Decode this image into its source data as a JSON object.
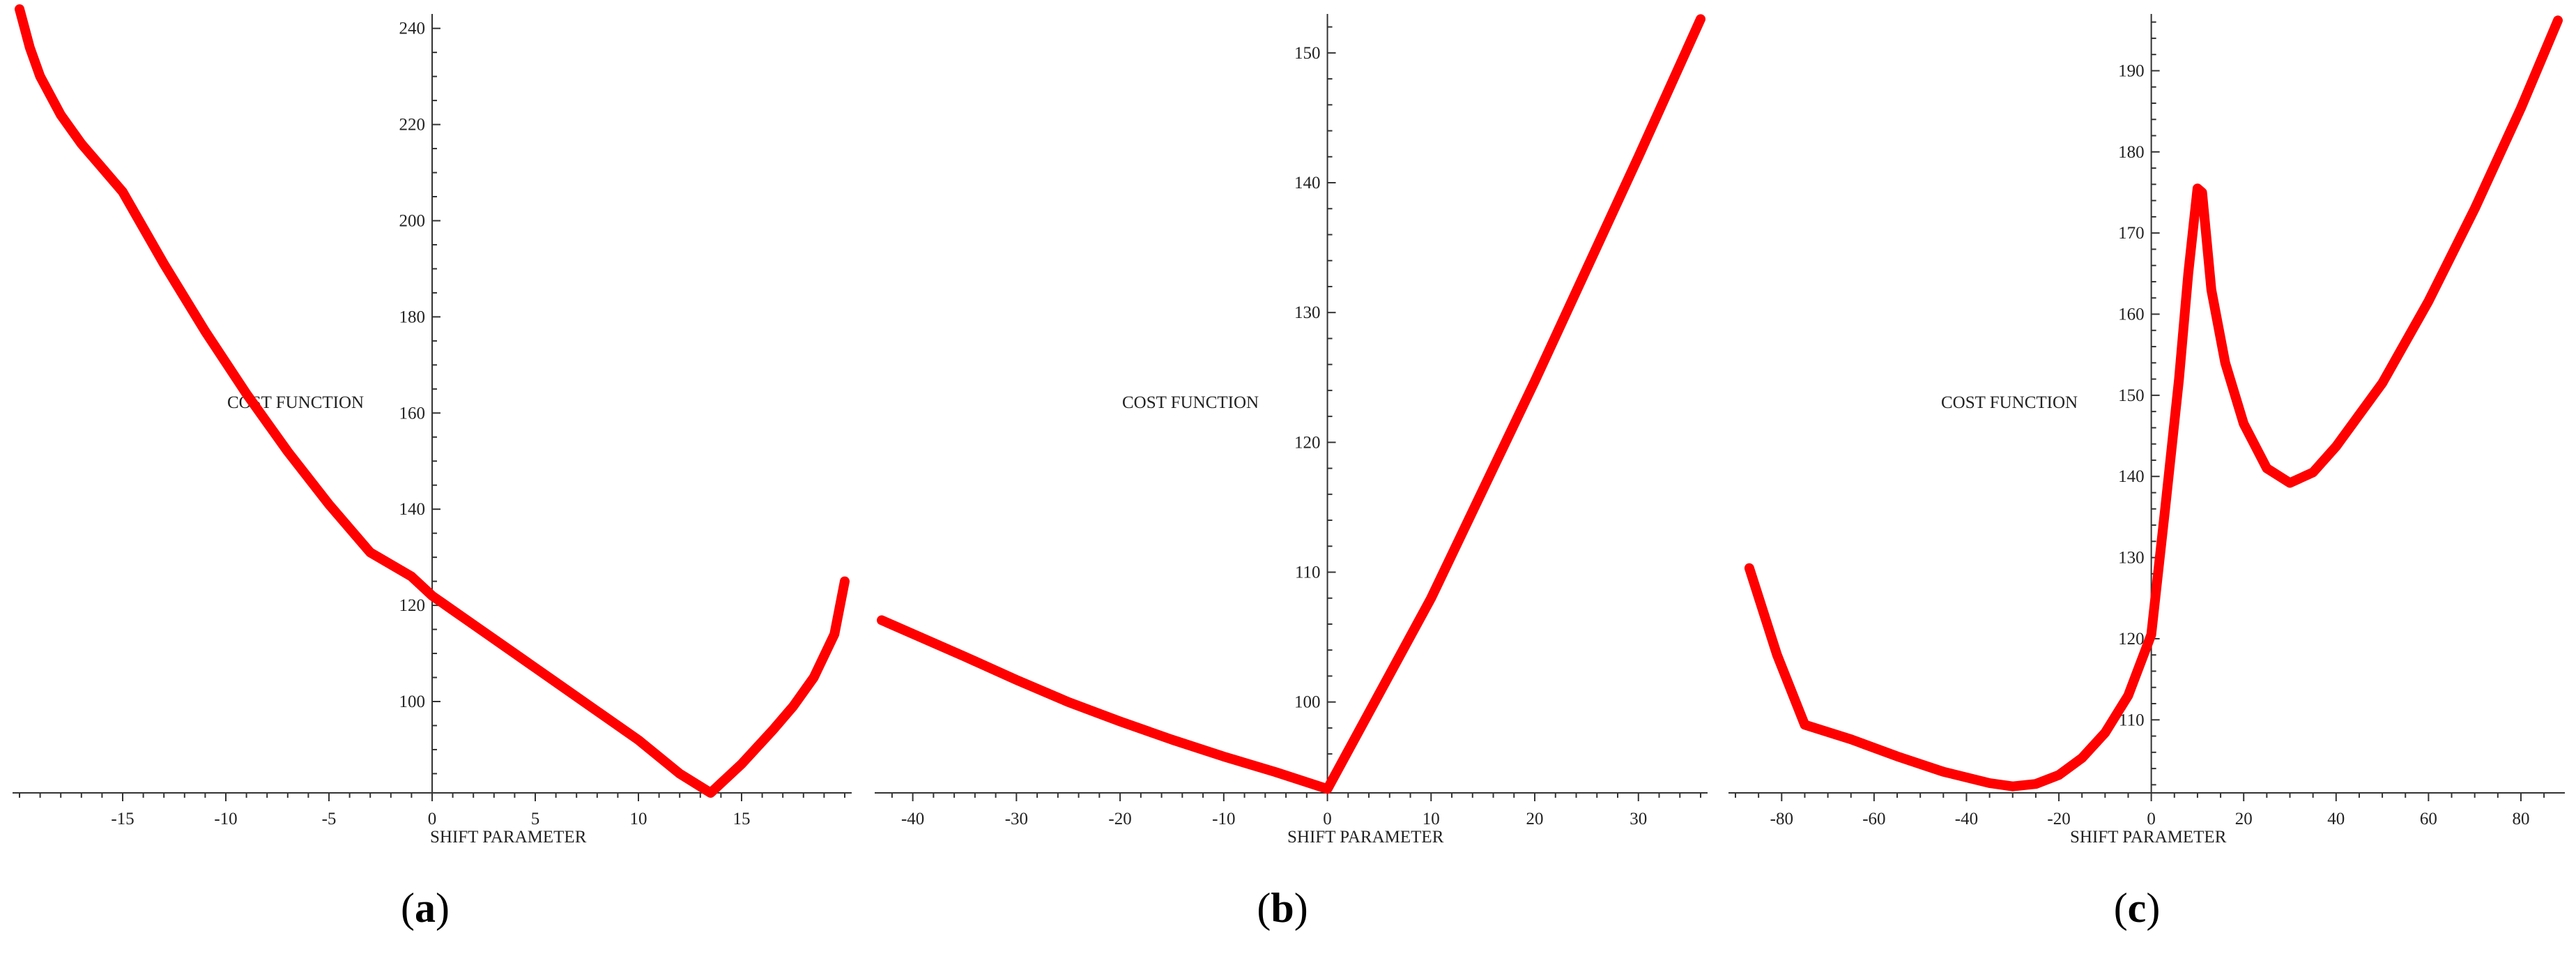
{
  "chart_data": [
    {
      "type": "line",
      "panel_label": "a",
      "xlabel": "SHIFT PARAMETER",
      "ylabel": "COST FUNCTION",
      "xlim": [
        -20,
        20
      ],
      "ylim": [
        81,
        243
      ],
      "x_ticks": [
        -15,
        -10,
        -5,
        0,
        5,
        10,
        15
      ],
      "y_ticks": [
        100,
        120,
        140,
        160,
        180,
        200,
        220,
        240
      ],
      "color": "#ff0000",
      "series": [
        {
          "x": [
            -20,
            -19.5,
            -19,
            -18,
            -17,
            -16,
            -15,
            -13,
            -11,
            -9,
            -7,
            -5,
            -3,
            -1,
            0,
            2,
            4,
            6,
            8,
            10,
            12,
            13.5,
            15,
            16.5,
            17.5,
            18.5,
            19.5,
            20
          ],
          "y": [
            244,
            236,
            230,
            222,
            216,
            211,
            206,
            191,
            177,
            164,
            152,
            141,
            131,
            126,
            122,
            116,
            110,
            104,
            98,
            92,
            85,
            81,
            87,
            94,
            99,
            105,
            114,
            125
          ]
        }
      ]
    },
    {
      "type": "line",
      "panel_label": "b",
      "xlabel": "SHIFT PARAMETER",
      "ylabel": "COST FUNCTION",
      "xlim": [
        -43,
        36
      ],
      "ylim": [
        93,
        153
      ],
      "x_ticks": [
        -40,
        -30,
        -20,
        -10,
        0,
        10,
        20,
        30
      ],
      "y_ticks": [
        100,
        110,
        120,
        130,
        140,
        150
      ],
      "color": "#ff0000",
      "series": [
        {
          "x": [
            -43,
            -35,
            -30,
            -25,
            -20,
            -15,
            -10,
            -5,
            0,
            10,
            20,
            30,
            36
          ],
          "y": [
            106.3,
            103.5,
            101.7,
            100,
            98.5,
            97.1,
            95.8,
            94.6,
            93.3,
            108,
            124.7,
            142,
            152.6
          ]
        }
      ]
    },
    {
      "type": "line",
      "panel_label": "c",
      "xlabel": "SHIFT PARAMETER",
      "ylabel": "COST FUNCTION",
      "xlim": [
        -90,
        88
      ],
      "ylim": [
        101,
        197
      ],
      "x_ticks": [
        -80,
        -60,
        -40,
        -20,
        0,
        20,
        40,
        60,
        80
      ],
      "y_ticks": [
        110,
        120,
        130,
        140,
        150,
        160,
        170,
        180,
        190
      ],
      "color": "#ff0000",
      "series": [
        {
          "x": [
            -87,
            -81,
            -75,
            -65,
            -55,
            -45,
            -35,
            -30,
            -25,
            -20,
            -15,
            -10,
            -5,
            0,
            3,
            6,
            8,
            10,
            11,
            13,
            16,
            20,
            25,
            30,
            35,
            40,
            50,
            60,
            70,
            80,
            88
          ],
          "y": [
            128.7,
            118,
            109.4,
            107.6,
            105.5,
            103.6,
            102.2,
            101.8,
            102.1,
            103.2,
            105.3,
            108.4,
            113,
            120.5,
            136,
            152,
            165,
            175.5,
            175,
            163,
            154,
            146.5,
            141,
            139.2,
            140.5,
            143.7,
            151.5,
            161.6,
            173,
            185.4,
            196.2
          ]
        }
      ]
    }
  ]
}
